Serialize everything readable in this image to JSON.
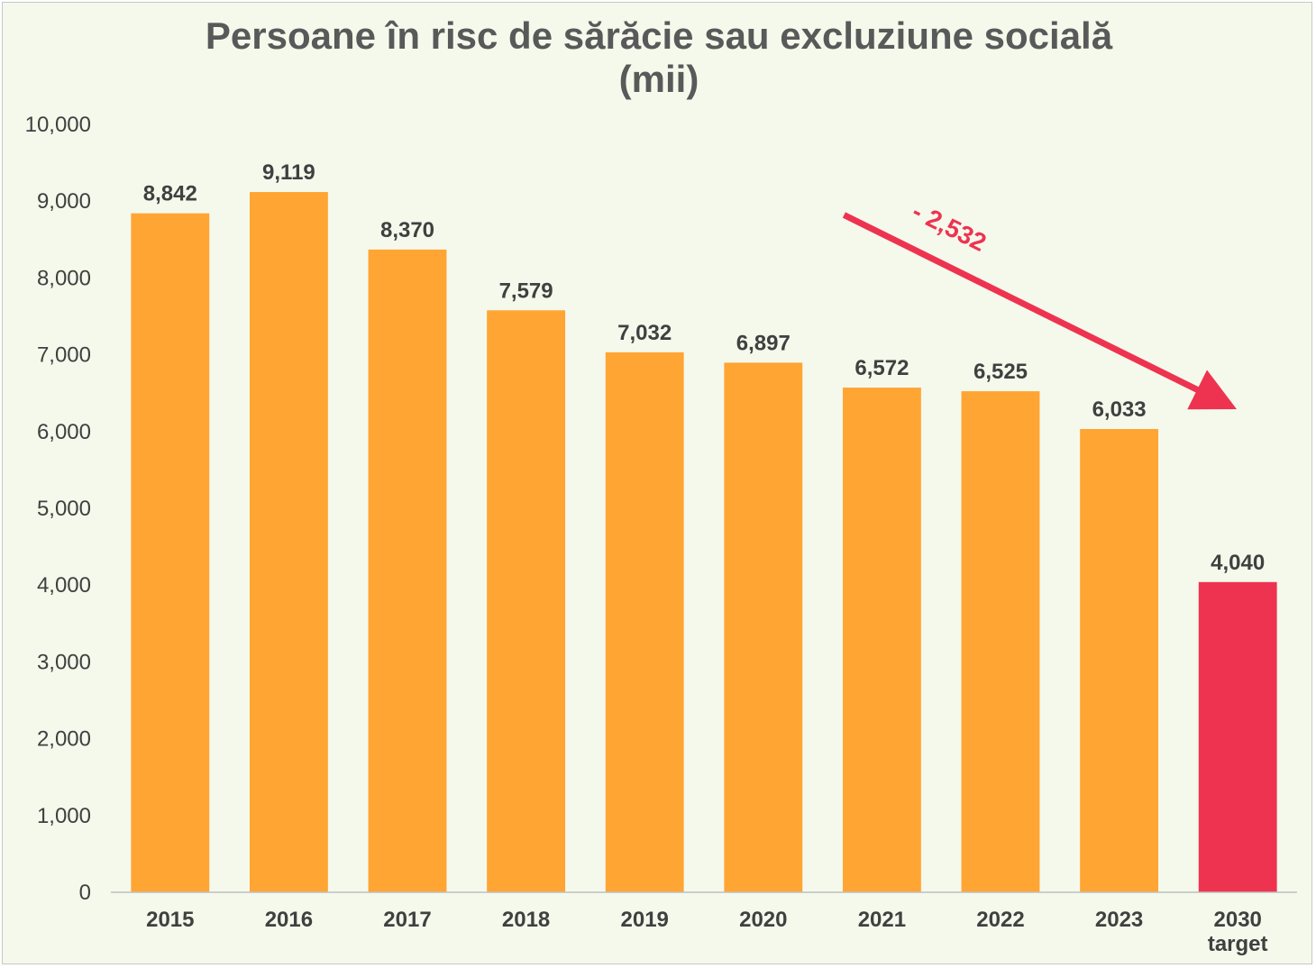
{
  "chart_data": {
    "type": "bar",
    "title": "Persoane în risc de sărăcie sau excluziune socială",
    "subtitle": "(mii)",
    "categories": [
      "2015",
      "2016",
      "2017",
      "2018",
      "2019",
      "2020",
      "2021",
      "2022",
      "2023",
      "2030"
    ],
    "category_sublabels": [
      "",
      "",
      "",
      "",
      "",
      "",
      "",
      "",
      "",
      "target"
    ],
    "values": [
      8842,
      9119,
      8370,
      7579,
      7032,
      6897,
      6572,
      6525,
      6033,
      4040
    ],
    "value_labels": [
      "8,842",
      "9,119",
      "8,370",
      "7,579",
      "7,032",
      "6,897",
      "6,572",
      "6,525",
      "6,033",
      "4,040"
    ],
    "bar_colors": [
      "#FFA533",
      "#FFA533",
      "#FFA533",
      "#FFA533",
      "#FFA533",
      "#FFA533",
      "#FFA533",
      "#FFA533",
      "#FFA533",
      "#EE3350"
    ],
    "ylim": [
      0,
      10000
    ],
    "yticks": [
      0,
      1000,
      2000,
      3000,
      4000,
      5000,
      6000,
      7000,
      8000,
      9000,
      10000
    ],
    "ytick_labels": [
      "0",
      "1,000",
      "2,000",
      "3,000",
      "4,000",
      "5,000",
      "6,000",
      "7,000",
      "8,000",
      "9,000",
      "10,000"
    ],
    "xlabel": "",
    "ylabel": "",
    "grid": false,
    "legend": "none",
    "annotation": {
      "text": "- 2,532",
      "color": "#EE3350",
      "from_category": "2021",
      "to_category": "2030"
    }
  }
}
